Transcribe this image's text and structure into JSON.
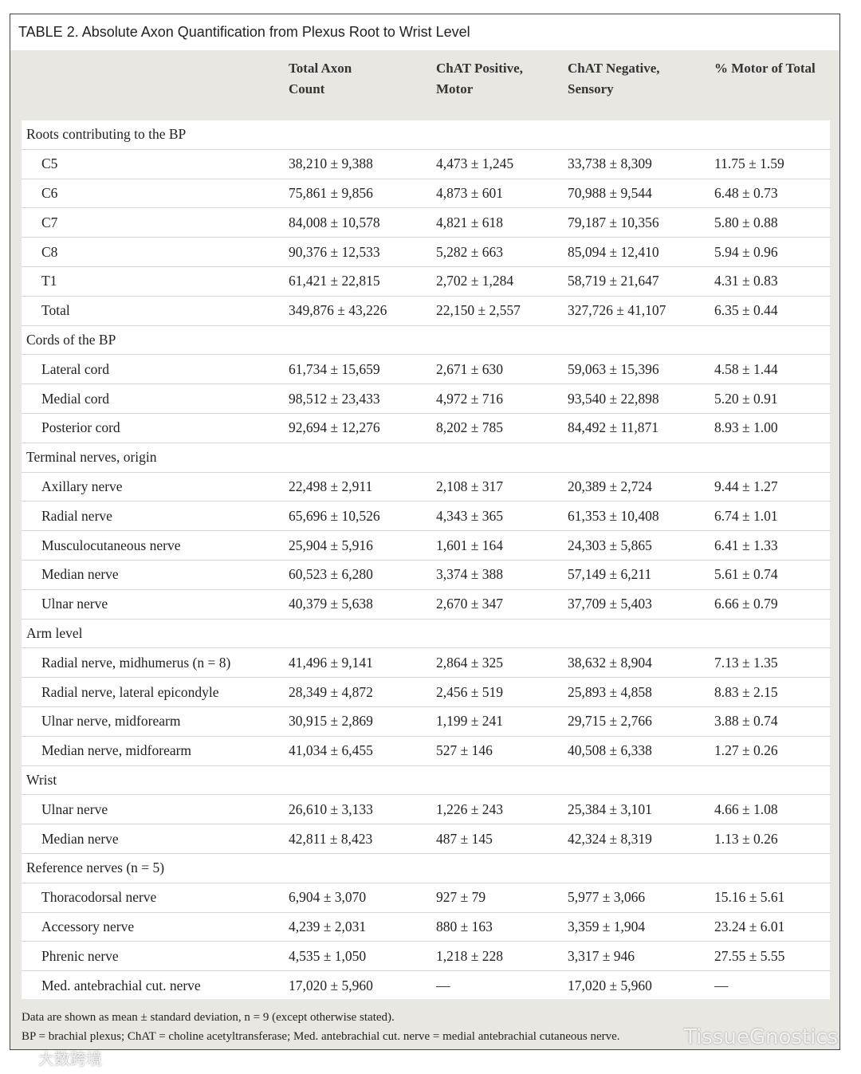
{
  "title": "TABLE 2. Absolute Axon Quantification from Plexus Root to Wrist Level",
  "header": [
    "Total Axon\nCount",
    "ChAT Positive,\nMotor",
    "ChAT Negative,\nSensory",
    "% Motor of Total"
  ],
  "sections": [
    {
      "title": "Roots contributing to the BP",
      "rows": [
        [
          "C5",
          "38,210 ± 9,388",
          "4,473 ± 1,245",
          "33,738 ± 8,309",
          "11.75 ± 1.59"
        ],
        [
          "C6",
          "75,861 ± 9,856",
          "4,873 ± 601",
          "70,988 ± 9,544",
          "6.48 ± 0.73"
        ],
        [
          "C7",
          "84,008 ± 10,578",
          "4,821 ± 618",
          "79,187 ± 10,356",
          "5.80 ± 0.88"
        ],
        [
          "C8",
          "90,376 ± 12,533",
          "5,282 ± 663",
          "85,094 ± 12,410",
          "5.94 ± 0.96"
        ],
        [
          "T1",
          "61,421 ± 22,815",
          "2,702 ± 1,284",
          "58,719 ± 21,647",
          "4.31 ± 0.83"
        ],
        [
          "Total",
          "349,876 ± 43,226",
          "22,150 ± 2,557",
          "327,726 ± 41,107",
          "6.35 ± 0.44"
        ]
      ]
    },
    {
      "title": "Cords of the BP",
      "rows": [
        [
          "Lateral cord",
          "61,734 ± 15,659",
          "2,671 ± 630",
          "59,063 ± 15,396",
          "4.58 ± 1.44"
        ],
        [
          "Medial cord",
          "98,512 ± 23,433",
          "4,972 ± 716",
          "93,540 ± 22,898",
          "5.20 ± 0.91"
        ],
        [
          "Posterior cord",
          "92,694 ± 12,276",
          "8,202 ± 785",
          "84,492 ± 11,871",
          "8.93 ± 1.00"
        ]
      ]
    },
    {
      "title": "Terminal nerves, origin",
      "rows": [
        [
          "Axillary nerve",
          "22,498 ± 2,911",
          "2,108 ± 317",
          "20,389 ± 2,724",
          "9.44 ± 1.27"
        ],
        [
          "Radial nerve",
          "65,696 ± 10,526",
          "4,343 ± 365",
          "61,353 ± 10,408",
          "6.74 ± 1.01"
        ],
        [
          "Musculocutaneous nerve",
          "25,904 ± 5,916",
          "1,601 ± 164",
          "24,303 ± 5,865",
          "6.41 ± 1.33"
        ],
        [
          "Median nerve",
          "60,523 ± 6,280",
          "3,374 ± 388",
          "57,149 ± 6,211",
          "5.61 ± 0.74"
        ],
        [
          "Ulnar nerve",
          "40,379 ± 5,638",
          "2,670 ± 347",
          "37,709 ± 5,403",
          "6.66 ± 0.79"
        ]
      ]
    },
    {
      "title": "Arm level",
      "rows": [
        [
          "Radial nerve, midhumerus (n = 8)",
          "41,496 ± 9,141",
          "2,864 ± 325",
          "38,632 ± 8,904",
          "7.13 ± 1.35"
        ],
        [
          "Radial nerve, lateral epicondyle",
          "28,349 ± 4,872",
          "2,456 ± 519",
          "25,893 ± 4,858",
          "8.83 ± 2.15"
        ],
        [
          "Ulnar nerve, midforearm",
          "30,915 ± 2,869",
          "1,199 ± 241",
          "29,715 ± 2,766",
          "3.88 ± 0.74"
        ],
        [
          "Median nerve, midforearm",
          "41,034 ± 6,455",
          "527 ± 146",
          "40,508 ± 6,338",
          "1.27 ± 0.26"
        ]
      ]
    },
    {
      "title": "Wrist",
      "rows": [
        [
          "Ulnar nerve",
          "26,610 ± 3,133",
          "1,226 ± 243",
          "25,384 ± 3,101",
          "4.66 ± 1.08"
        ],
        [
          "Median nerve",
          "42,811 ± 8,423",
          "487 ± 145",
          "42,324 ± 8,319",
          "1.13 ± 0.26"
        ]
      ]
    },
    {
      "title": "Reference nerves (n = 5)",
      "rows": [
        [
          "Thoracodorsal nerve",
          "6,904 ± 3,070",
          "927 ± 79",
          "5,977 ± 3,066",
          "15.16 ± 5.61"
        ],
        [
          "Accessory nerve",
          "4,239 ± 2,031",
          "880 ± 163",
          "3,359 ± 1,904",
          "23.24 ± 6.01"
        ],
        [
          "Phrenic nerve",
          "4,535 ± 1,050",
          "1,218 ± 228",
          "3,317 ± 946",
          "27.55 ± 5.55"
        ],
        [
          "Med. antebrachial cut. nerve",
          "17,020 ± 5,960",
          "—",
          "17,020 ± 5,960",
          "—"
        ]
      ]
    }
  ],
  "footnotes": [
    "Data are shown as mean ± standard deviation, n = 9 (except otherwise stated).",
    "BP = brachial plexus; ChAT = choline acetyltransferase; Med. antebrachial cut. nerve = medial antebrachial cutaneous nerve."
  ],
  "watermarks": [
    "TissueGnostics",
    "大数跨境"
  ]
}
